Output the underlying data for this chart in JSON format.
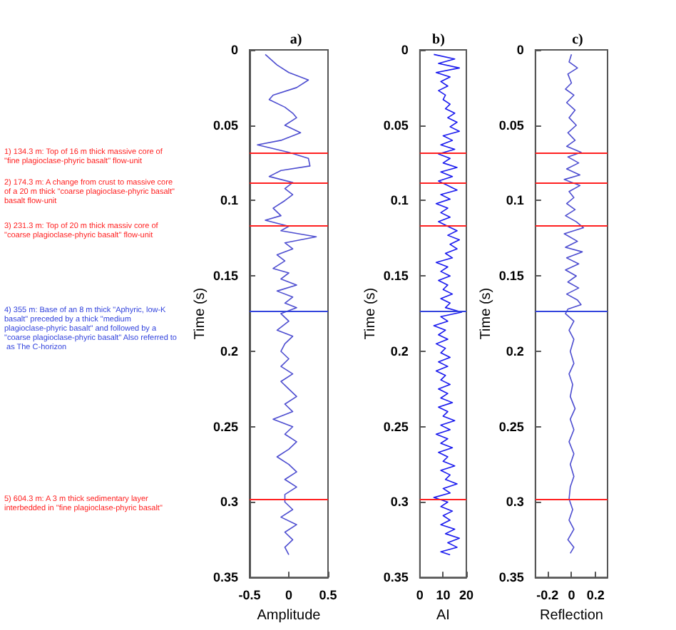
{
  "chart_data": [
    {
      "type": "line",
      "title": "a)",
      "xlabel": "Amplitude",
      "ylabel": "Time (s)",
      "xlim": [
        -0.5,
        0.5
      ],
      "xticks": [
        -0.5,
        0,
        0.5
      ],
      "ylim": [
        0.35,
        0
      ],
      "yticks": [
        0,
        0.05,
        0.1,
        0.15,
        0.2,
        0.25,
        0.3,
        0.35
      ],
      "grid": false,
      "series": [
        {
          "color": "#4d4dd0",
          "x": [
            -0.3,
            -0.15,
            0.0,
            0.25,
            0.1,
            -0.2,
            -0.25,
            -0.05,
            0.05,
            0.1,
            -0.05,
            0.15,
            -0.1,
            -0.4,
            0.0,
            0.25,
            0.27,
            -0.1,
            -0.25,
            0.05,
            -0.05,
            0.05,
            -0.05,
            -0.2,
            -0.1,
            -0.3,
            0.0,
            -0.1,
            0.35,
            -0.05,
            0.05,
            -0.15,
            -0.05,
            -0.2,
            0.0,
            -0.1,
            0.1,
            -0.15,
            0.05,
            -0.05,
            0.1,
            -0.1,
            0.0,
            -0.15,
            0.05,
            -0.05,
            -0.1,
            0.0,
            -0.1,
            0.05,
            -0.1,
            0.0,
            0.1,
            -0.05,
            0.05,
            -0.2,
            0.05,
            -0.05,
            0.1,
            0.0,
            -0.15,
            0.0,
            0.1,
            -0.05,
            0.1,
            -0.05,
            -0.05,
            0.05,
            -0.1,
            0.1,
            -0.05,
            0.05,
            -0.05,
            0.0
          ],
          "values": [
            0.003,
            0.01,
            0.015,
            0.02,
            0.025,
            0.03,
            0.033,
            0.038,
            0.042,
            0.045,
            0.05,
            0.055,
            0.06,
            0.063,
            0.068,
            0.072,
            0.077,
            0.08,
            0.084,
            0.088,
            0.092,
            0.096,
            0.1,
            0.105,
            0.11,
            0.113,
            0.117,
            0.12,
            0.124,
            0.128,
            0.132,
            0.136,
            0.14,
            0.145,
            0.148,
            0.152,
            0.156,
            0.16,
            0.164,
            0.168,
            0.171,
            0.175,
            0.18,
            0.186,
            0.19,
            0.195,
            0.2,
            0.205,
            0.21,
            0.215,
            0.22,
            0.225,
            0.23,
            0.235,
            0.24,
            0.245,
            0.25,
            0.255,
            0.26,
            0.265,
            0.27,
            0.275,
            0.28,
            0.285,
            0.29,
            0.295,
            0.3,
            0.305,
            0.31,
            0.315,
            0.32,
            0.325,
            0.33,
            0.335
          ]
        }
      ],
      "ref_lines": [
        {
          "axis": "y",
          "value": 0.068,
          "color": "#ff2020",
          "label": "1) 134.3 m: Top of 16 m thick massive core of \"fine plagioclase-phyric basalt\" flow-unit"
        },
        {
          "axis": "y",
          "value": 0.088,
          "color": "#ff2020",
          "label": "2) 174.3 m: A change from crust to massive core of a 20 m thick \"coarse plagioclase-phyric basalt\" basalt flow-unit"
        },
        {
          "axis": "y",
          "value": 0.117,
          "color": "#ff2020",
          "label": "3) 231.3 m: Top of 20 m thick massiv core of \"coarse plagioclase-phyric basalt\" flow-unit"
        },
        {
          "axis": "y",
          "value": 0.173,
          "color": "#3344dd",
          "label": "4) 355 m: Base of an 8 m thick \"Aphyric, low-K basalt\" preceded by a thick \"medium plagioclase-phyric basalt\" and followed by a \"coarse plagioclase-phyric basalt\" Also referred to as The C-horizon"
        },
        {
          "axis": "y",
          "value": 0.298,
          "color": "#ff2020",
          "label": "5) 604.3 m: A 3 m thick sedimentary layer interbedded in \"fine plagioclase-phyric basalt\""
        }
      ]
    },
    {
      "type": "line",
      "title": "b)",
      "xlabel": "AI",
      "ylabel": "Time (s)",
      "xlim": [
        0,
        20
      ],
      "xticks": [
        0,
        10,
        20
      ],
      "ylim": [
        0.35,
        0
      ],
      "yticks": [
        0,
        0.05,
        0.1,
        0.15,
        0.2,
        0.25,
        0.3,
        0.35
      ],
      "grid": false,
      "series": [
        {
          "color": "#1a1aee",
          "x": [
            6,
            15,
            8,
            17,
            7,
            13,
            9,
            12,
            8,
            11,
            10,
            13,
            11,
            15,
            12,
            16,
            13,
            17,
            10,
            14,
            9,
            15,
            8,
            13,
            10,
            16,
            9,
            14,
            8,
            12,
            16,
            9,
            13,
            7,
            12,
            9,
            13,
            8,
            12,
            16,
            12,
            17,
            13,
            16,
            11,
            14,
            7,
            12,
            9,
            13,
            8,
            12,
            10,
            14,
            9,
            13,
            11,
            18,
            9,
            12,
            6,
            11,
            8,
            12,
            7,
            11,
            9,
            13,
            8,
            12,
            7,
            11,
            9,
            13,
            8,
            12,
            9,
            14,
            8,
            12,
            10,
            15,
            9,
            13,
            7,
            12,
            9,
            14,
            8,
            12,
            10,
            15,
            9,
            13,
            11,
            16,
            10,
            13,
            6,
            12,
            9,
            14,
            10,
            13,
            9,
            15,
            11,
            17,
            12,
            16,
            9,
            13
          ],
          "values": [
            0.003,
            0.006,
            0.009,
            0.012,
            0.015,
            0.018,
            0.021,
            0.024,
            0.027,
            0.03,
            0.033,
            0.036,
            0.039,
            0.042,
            0.045,
            0.048,
            0.051,
            0.054,
            0.057,
            0.06,
            0.063,
            0.066,
            0.069,
            0.072,
            0.075,
            0.078,
            0.081,
            0.084,
            0.087,
            0.09,
            0.093,
            0.096,
            0.099,
            0.102,
            0.105,
            0.108,
            0.111,
            0.114,
            0.117,
            0.12,
            0.123,
            0.126,
            0.129,
            0.132,
            0.135,
            0.138,
            0.141,
            0.144,
            0.147,
            0.15,
            0.153,
            0.156,
            0.159,
            0.162,
            0.165,
            0.168,
            0.171,
            0.174,
            0.177,
            0.18,
            0.183,
            0.186,
            0.189,
            0.192,
            0.195,
            0.198,
            0.201,
            0.204,
            0.207,
            0.21,
            0.213,
            0.216,
            0.219,
            0.222,
            0.225,
            0.228,
            0.231,
            0.234,
            0.237,
            0.24,
            0.243,
            0.246,
            0.249,
            0.252,
            0.255,
            0.258,
            0.261,
            0.264,
            0.267,
            0.27,
            0.273,
            0.276,
            0.279,
            0.282,
            0.285,
            0.288,
            0.291,
            0.294,
            0.297,
            0.3,
            0.303,
            0.306,
            0.309,
            0.312,
            0.315,
            0.318,
            0.321,
            0.324,
            0.327,
            0.33,
            0.333,
            0.335
          ]
        }
      ],
      "ref_lines": [
        {
          "axis": "y",
          "value": 0.068,
          "color": "#ff2020"
        },
        {
          "axis": "y",
          "value": 0.088,
          "color": "#ff2020"
        },
        {
          "axis": "y",
          "value": 0.117,
          "color": "#ff2020"
        },
        {
          "axis": "y",
          "value": 0.173,
          "color": "#3344dd"
        },
        {
          "axis": "y",
          "value": 0.298,
          "color": "#ff2020"
        }
      ]
    },
    {
      "type": "line",
      "title": "c)",
      "xlabel": "Reflection",
      "ylabel": "Time (s)",
      "xlim": [
        -0.3,
        0.3
      ],
      "xticks": [
        -0.2,
        0,
        0.2
      ],
      "ylim": [
        0.35,
        0
      ],
      "yticks": [
        0,
        0.05,
        0.1,
        0.15,
        0.2,
        0.25,
        0.3,
        0.35
      ],
      "grid": false,
      "series": [
        {
          "color": "#4d4dd0",
          "x": [
            0.0,
            -0.02,
            0.05,
            -0.03,
            0.0,
            -0.05,
            0.02,
            -0.04,
            0.03,
            -0.02,
            0.04,
            -0.03,
            0.03,
            -0.04,
            0.08,
            -0.03,
            0.06,
            -0.04,
            0.07,
            -0.06,
            0.07,
            -0.02,
            0.02,
            -0.04,
            0.03,
            -0.05,
            0.04,
            0.1,
            -0.06,
            0.05,
            -0.05,
            0.09,
            -0.04,
            0.06,
            -0.05,
            0.04,
            -0.03,
            0.06,
            -0.04,
            0.05,
            0.08,
            -0.03,
            -0.05,
            0.02,
            -0.02,
            0.02,
            -0.01,
            0.02,
            -0.02,
            0.01,
            -0.01,
            0.03,
            -0.01,
            0.02,
            -0.02,
            0.02,
            -0.01,
            0.02,
            -0.01,
            -0.02,
            0.01,
            -0.02,
            0.02,
            -0.03,
            0.02,
            -0.01
          ],
          "values": [
            0.003,
            0.008,
            0.012,
            0.016,
            0.022,
            0.026,
            0.03,
            0.035,
            0.04,
            0.045,
            0.05,
            0.055,
            0.06,
            0.064,
            0.068,
            0.071,
            0.075,
            0.079,
            0.083,
            0.086,
            0.09,
            0.094,
            0.098,
            0.102,
            0.106,
            0.11,
            0.114,
            0.118,
            0.122,
            0.127,
            0.131,
            0.134,
            0.138,
            0.142,
            0.146,
            0.15,
            0.154,
            0.158,
            0.162,
            0.166,
            0.169,
            0.172,
            0.175,
            0.18,
            0.186,
            0.192,
            0.2,
            0.208,
            0.215,
            0.222,
            0.23,
            0.238,
            0.245,
            0.252,
            0.26,
            0.268,
            0.275,
            0.283,
            0.29,
            0.298,
            0.305,
            0.312,
            0.318,
            0.325,
            0.33,
            0.334
          ]
        }
      ],
      "ref_lines": [
        {
          "axis": "y",
          "value": 0.068,
          "color": "#ff2020"
        },
        {
          "axis": "y",
          "value": 0.088,
          "color": "#ff2020"
        },
        {
          "axis": "y",
          "value": 0.117,
          "color": "#ff2020"
        },
        {
          "axis": "y",
          "value": 0.173,
          "color": "#3344dd"
        },
        {
          "axis": "y",
          "value": 0.298,
          "color": "#ff2020"
        }
      ]
    }
  ]
}
